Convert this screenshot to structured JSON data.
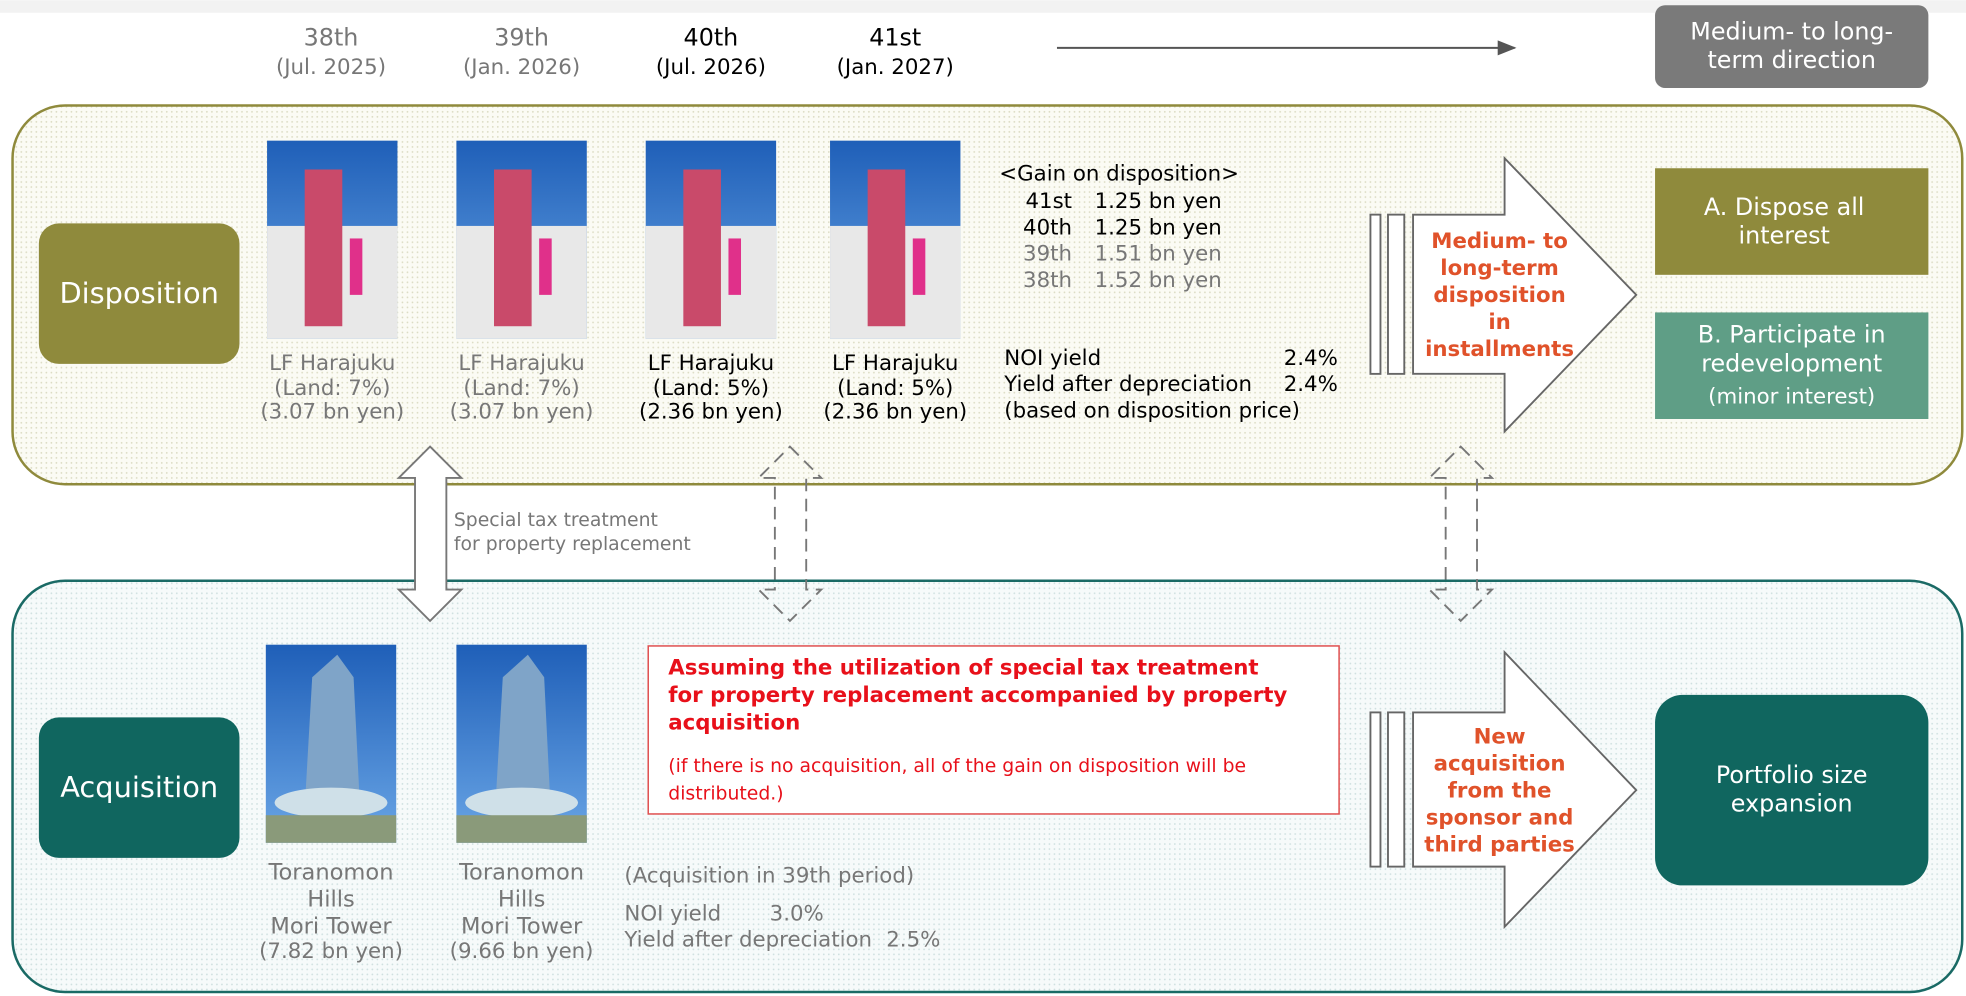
{
  "periods": [
    {
      "label": "38th",
      "date": "(Jul. 2025)"
    },
    {
      "label": "39th",
      "date": "(Jan. 2026)"
    },
    {
      "label": "40th",
      "date": "(Jul. 2026)"
    },
    {
      "label": "41st",
      "date": "(Jan. 2027)"
    }
  ],
  "direction_header": [
    "Medium- to long-",
    "term direction"
  ],
  "disposition": {
    "label": "Disposition",
    "properties": [
      {
        "name": "LF Harajuku",
        "share": "(Land: 7%)",
        "price": "(3.07 bn yen)"
      },
      {
        "name": "LF Harajuku",
        "share": "(Land: 7%)",
        "price": "(3.07 bn yen)"
      },
      {
        "name": "LF Harajuku",
        "share": "(Land: 5%)",
        "price": "(2.36 bn yen)"
      },
      {
        "name": "LF Harajuku",
        "share": "(Land: 5%)",
        "price": "(2.36 bn yen)"
      }
    ],
    "gain_header": "<Gain on disposition>",
    "gains": [
      [
        "41st",
        "1.25 bn yen"
      ],
      [
        "40th",
        "1.25 bn yen"
      ],
      [
        "39th",
        "1.51 bn yen"
      ],
      [
        "38th",
        "1.52 bn yen"
      ]
    ],
    "yields": [
      [
        "NOI yield",
        "2.4%"
      ],
      [
        "Yield after depreciation",
        "2.4%"
      ]
    ],
    "yield_note": "(based on disposition price)",
    "arrow_text": [
      "Medium- to",
      "long-term",
      "disposition",
      "in",
      "installments"
    ],
    "option_a": [
      "A. Dispose all",
      "interest"
    ],
    "option_b": [
      "B. Participate in",
      "redevelopment"
    ],
    "option_b_note": "(minor interest)"
  },
  "tax_note": [
    "Special tax treatment",
    "for property replacement"
  ],
  "acquisition": {
    "label": "Acquisition",
    "properties": [
      {
        "name": [
          "Toranomon",
          "Hills",
          "Mori Tower"
        ],
        "price": "(7.82 bn yen)"
      },
      {
        "name": [
          "Toranomon",
          "Hills",
          "Mori Tower"
        ],
        "price": "(9.66 bn yen)"
      }
    ],
    "assumption": [
      "Assuming the utilization of special tax treatment",
      "for property replacement accompanied by property",
      "acquisition"
    ],
    "assumption_note": [
      "(if there is no acquisition, all of the gain on disposition will be",
      "distributed.)"
    ],
    "period_note": "(Acquisition in 39th period)",
    "yields": [
      [
        "NOI yield",
        "3.0%"
      ],
      [
        "Yield after depreciation",
        "2.5%"
      ]
    ],
    "arrow_text": [
      "New",
      "acquisition",
      "from the",
      "sponsor and",
      "third parties"
    ],
    "result": [
      "Portfolio size",
      "expansion"
    ]
  }
}
